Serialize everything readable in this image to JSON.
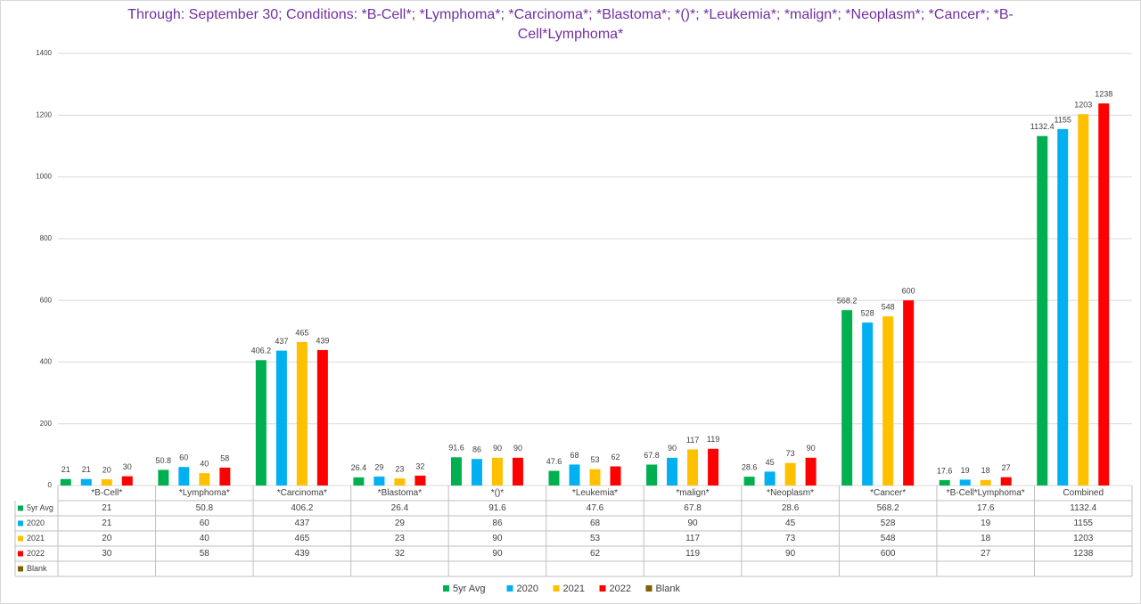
{
  "chart_data": {
    "type": "bar",
    "title": "Through: September 30; Conditions: *B-Cell*; *Lymphoma*; *Carcinoma*; *Blastoma*; *()*; *Leukemia*; *malign*; *Neoplasm*; *Cancer*; *B-Cell*Lymphoma*",
    "categories": [
      "*B-Cell*",
      "*Lymphoma*",
      "*Carcinoma*",
      "*Blastoma*",
      "*()*",
      "*Leukemia*",
      "*malign*",
      "*Neoplasm*",
      "*Cancer*",
      "*B-Cell*Lymphoma*",
      "Combined"
    ],
    "series": [
      {
        "name": "5yr Avg",
        "color": "#00b050",
        "values": [
          21,
          50.8,
          406.2,
          26.4,
          91.6,
          47.6,
          67.8,
          28.6,
          568.2,
          17.6,
          1132.4
        ]
      },
      {
        "name": "2020",
        "color": "#00b0f0",
        "values": [
          21,
          60,
          437,
          29,
          86,
          68,
          90,
          45,
          528,
          19,
          1155
        ]
      },
      {
        "name": "2021",
        "color": "#ffc000",
        "values": [
          20,
          40,
          465,
          23,
          90,
          53,
          117,
          73,
          548,
          18,
          1203
        ]
      },
      {
        "name": "2022",
        "color": "#ff0000",
        "values": [
          30,
          58,
          439,
          32,
          90,
          62,
          119,
          90,
          600,
          27,
          1238
        ]
      },
      {
        "name": "Blank",
        "color": "#7f6000",
        "values": [
          null,
          null,
          null,
          null,
          null,
          null,
          null,
          null,
          null,
          null,
          null
        ]
      }
    ],
    "ylim": [
      0,
      1400
    ],
    "yticks": [
      0,
      200,
      400,
      600,
      800,
      1000,
      1200,
      1400
    ],
    "grid": true,
    "legend": "bottom",
    "data_table": true
  }
}
